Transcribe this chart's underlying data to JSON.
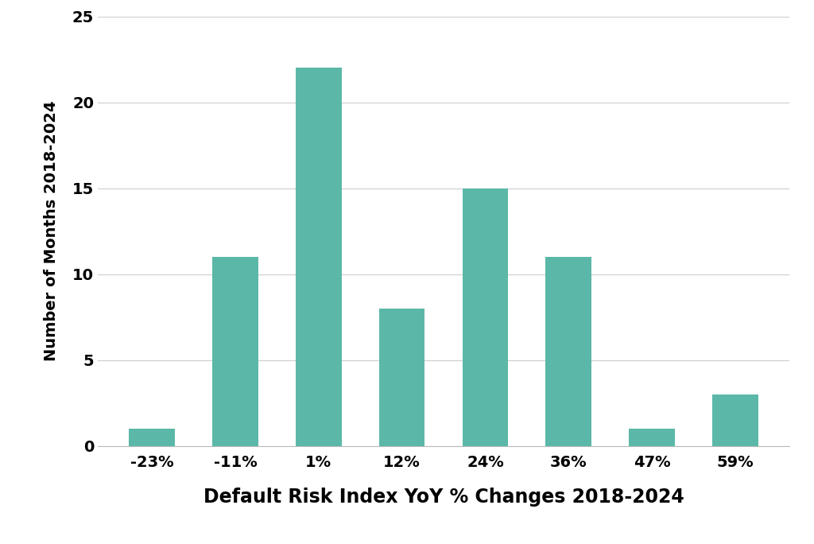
{
  "categories": [
    "-23%",
    "-11%",
    "1%",
    "12%",
    "24%",
    "36%",
    "47%",
    "59%"
  ],
  "values": [
    1,
    11,
    22,
    8,
    15,
    11,
    1,
    3
  ],
  "bar_color": "#5bb8a8",
  "xlabel": "Default Risk Index YoY % Changes 2018-2024",
  "ylabel": "Number of Months 2018-2024",
  "ylim": [
    0,
    25
  ],
  "yticks": [
    0,
    5,
    10,
    15,
    20,
    25
  ],
  "background_color": "#ffffff",
  "grid_color": "#d0d0d0",
  "xlabel_fontsize": 17,
  "ylabel_fontsize": 14,
  "tick_fontsize": 14,
  "bar_width": 0.55,
  "font_weight": "bold"
}
